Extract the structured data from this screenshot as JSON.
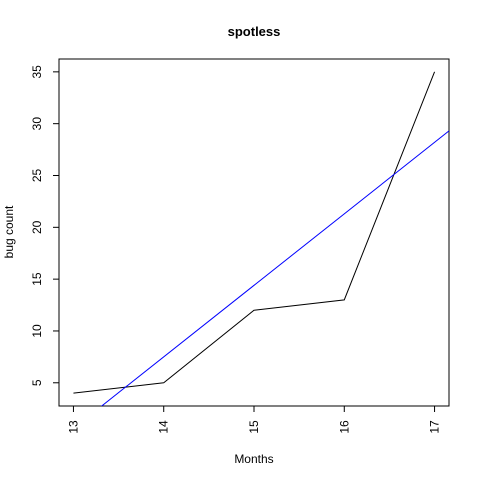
{
  "chart_data": {
    "type": "line",
    "title": "spotless",
    "xlabel": "Months",
    "ylabel": "bug count",
    "x": [
      13,
      14,
      15,
      16,
      17
    ],
    "x_tick_labels": [
      "13",
      "14",
      "15",
      "16",
      "17"
    ],
    "y_ticks": [
      5,
      10,
      15,
      20,
      25,
      30,
      35
    ],
    "y_tick_labels": [
      "5",
      "10",
      "15",
      "20",
      "25",
      "30",
      "35"
    ],
    "xlim": [
      12.84,
      17.16
    ],
    "ylim": [
      2.76,
      36.24
    ],
    "series": [
      {
        "values": [
          4,
          5,
          12,
          13,
          35
        ],
        "color": "#000000"
      }
    ],
    "fit_line": {
      "slope": 6.9,
      "intercept": -89.1,
      "color": "#0000ff"
    },
    "grid": false,
    "legend": "none"
  }
}
